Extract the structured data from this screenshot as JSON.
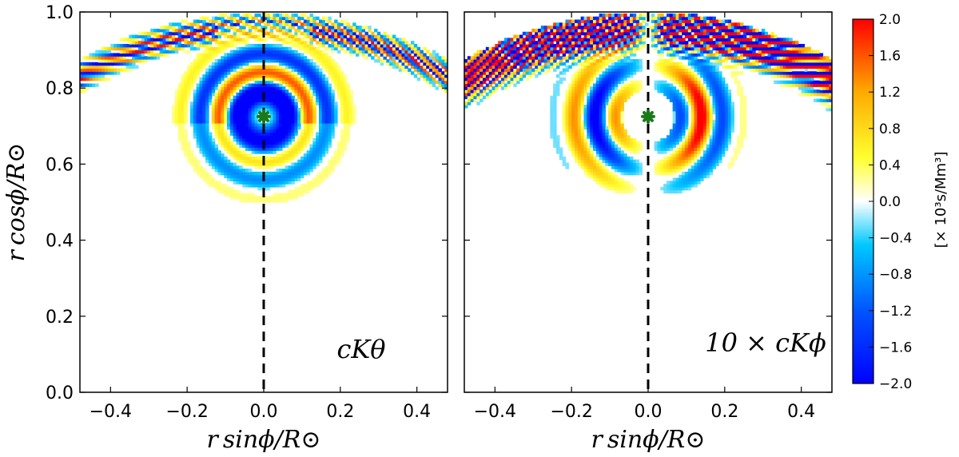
{
  "chart_data": {
    "type": "heatmap",
    "colormap": [
      "#0000ff",
      "#00bfff",
      "#ffffff",
      "#ffff00",
      "#ff0000"
    ],
    "xlabel": "r sinϕ/R⊙",
    "ylabel": "r cosϕ/R⊙",
    "xlim": [
      -0.48,
      0.48
    ],
    "ylim": [
      0.0,
      1.0
    ],
    "xticks": [
      "−0.4",
      "−0.2",
      "0.0",
      "0.2",
      "0.4"
    ],
    "xtick_values": [
      -0.4,
      -0.2,
      0.0,
      0.2,
      0.4
    ],
    "yticks": [
      "0.0",
      "0.2",
      "0.4",
      "0.6",
      "0.8",
      "1.0"
    ],
    "ytick_values": [
      0.0,
      0.2,
      0.4,
      0.6,
      0.8,
      1.0
    ],
    "marker": {
      "x": 0.0,
      "y": 0.725,
      "color": "#1a7a1a"
    },
    "reference_line": {
      "x": 0.0,
      "style": "dashed"
    },
    "panels": [
      {
        "name": "left",
        "label": "cKθ",
        "component": "theta"
      },
      {
        "name": "right",
        "label": "10 × cKϕ",
        "component": "phi"
      }
    ],
    "colorbar": {
      "range": [
        -2.0,
        2.0
      ],
      "ticks": [
        "2.0",
        "1.6",
        "1.2",
        "0.8",
        "0.4",
        "0.0",
        "−0.4",
        "−0.8",
        "−1.2",
        "−1.6",
        "−2.0"
      ],
      "tick_values": [
        2.0,
        1.6,
        1.2,
        0.8,
        0.4,
        0.0,
        -0.4,
        -0.8,
        -1.2,
        -1.6,
        -2.0
      ],
      "label": "[× 10³s/Mm³]"
    }
  }
}
